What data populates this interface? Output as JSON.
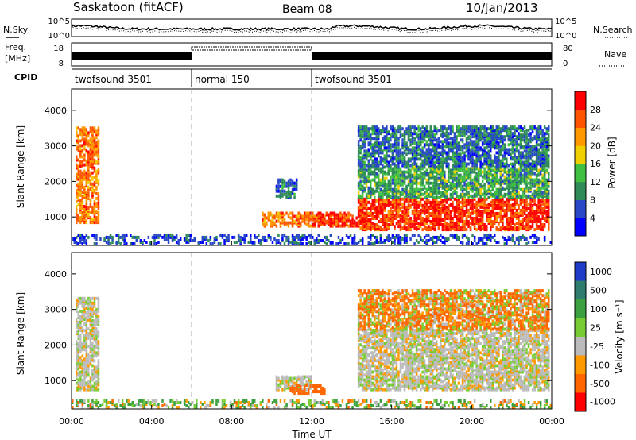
{
  "header": {
    "station": "Saskatoon (fitACF)",
    "beam": "Beam 08",
    "date": "10/Jan/2013"
  },
  "top_panels": {
    "nsky_label": "N.Sky",
    "nsearch_label": "N.Search",
    "noise_ticks": [
      "10^5",
      "10^0"
    ],
    "freq_label_line1": "Freq.",
    "freq_label_line2": "[MHz]",
    "freq_ticks": [
      "18",
      "8"
    ],
    "nave_label": "Nave",
    "nave_ticks": [
      "80",
      "0"
    ],
    "cpid_label": "CPID",
    "cpid_segments": [
      {
        "name": "twofsound 3501",
        "start": 0,
        "end": 6
      },
      {
        "name": "normal 150",
        "start": 6,
        "end": 12
      },
      {
        "name": "twofsound 3501",
        "start": 12,
        "end": 24
      }
    ]
  },
  "x_axis": {
    "ticks": [
      "00:00",
      "04:00",
      "08:00",
      "12:00",
      "16:00",
      "20:00",
      "00:00"
    ],
    "label": "Time UT"
  },
  "colors": {
    "power": [
      "#0000ff",
      "#2848c8",
      "#2e8b57",
      "#40c040",
      "#f0d000",
      "#ff9900",
      "#ff5500",
      "#ff0000"
    ],
    "velocity": [
      "#1e3cc8",
      "#2e7d6e",
      "#3aa040",
      "#77cc33",
      "#bbbbbb",
      "#ff9900",
      "#ff6600",
      "#ff0000"
    ]
  },
  "chart_data": [
    {
      "type": "heatmap",
      "name": "Power",
      "ylabel": "Slant Range [km]",
      "xlabel": "Time UT",
      "xlim": [
        0,
        24
      ],
      "ylim": [
        200,
        4600
      ],
      "yticks": [
        1000,
        2000,
        3000,
        4000
      ],
      "colorbar": {
        "label": "Power [dB]",
        "ticks": [
          4,
          8,
          12,
          16,
          20,
          24,
          28
        ],
        "range": [
          0,
          32
        ]
      },
      "regions": [
        {
          "t": [
            0.2,
            1.4
          ],
          "r": [
            800,
            3500
          ],
          "core_db": 24
        },
        {
          "t": [
            9.5,
            11.9
          ],
          "r": [
            700,
            1100
          ],
          "core_db": 24
        },
        {
          "t": [
            10.2,
            11.2
          ],
          "r": [
            1500,
            2000
          ],
          "core_db": 8
        },
        {
          "t": [
            12.0,
            14.7
          ],
          "r": [
            700,
            1100
          ],
          "core_db": 28
        },
        {
          "t": [
            14.3,
            23.9
          ],
          "r": [
            600,
            1500
          ],
          "core_db": 28
        },
        {
          "t": [
            14.3,
            23.9
          ],
          "r": [
            1500,
            2400
          ],
          "core_db": 12
        },
        {
          "t": [
            14.3,
            23.9
          ],
          "r": [
            2400,
            3500
          ],
          "core_db": 8
        },
        {
          "t": [
            0.0,
            24.0
          ],
          "r": [
            200,
            450
          ],
          "core_db": 6
        }
      ]
    },
    {
      "type": "heatmap",
      "name": "Velocity",
      "ylabel": "Slant Range [km]",
      "xlabel": "Time UT",
      "xlim": [
        0,
        24
      ],
      "ylim": [
        200,
        4600
      ],
      "yticks": [
        1000,
        2000,
        3000,
        4000
      ],
      "colorbar": {
        "label": "Velocity [m s⁻¹]",
        "ticks": [
          1000,
          500,
          100,
          25,
          -25,
          -100,
          -500,
          -1000
        ]
      },
      "regions": [
        {
          "t": [
            0.2,
            1.4
          ],
          "r": [
            700,
            3300
          ],
          "core_v": 0
        },
        {
          "t": [
            10.2,
            11.9
          ],
          "r": [
            700,
            1100
          ],
          "core_v": 0
        },
        {
          "t": [
            10.9,
            12.6
          ],
          "r": [
            600,
            850
          ],
          "core_v": -300
        },
        {
          "t": [
            14.3,
            23.9
          ],
          "r": [
            700,
            2400
          ],
          "core_v": 0
        },
        {
          "t": [
            14.3,
            23.9
          ],
          "r": [
            2400,
            3500
          ],
          "core_v": -100
        },
        {
          "t": [
            0.0,
            24.0
          ],
          "r": [
            200,
            400
          ],
          "core_v": 60
        }
      ]
    }
  ]
}
